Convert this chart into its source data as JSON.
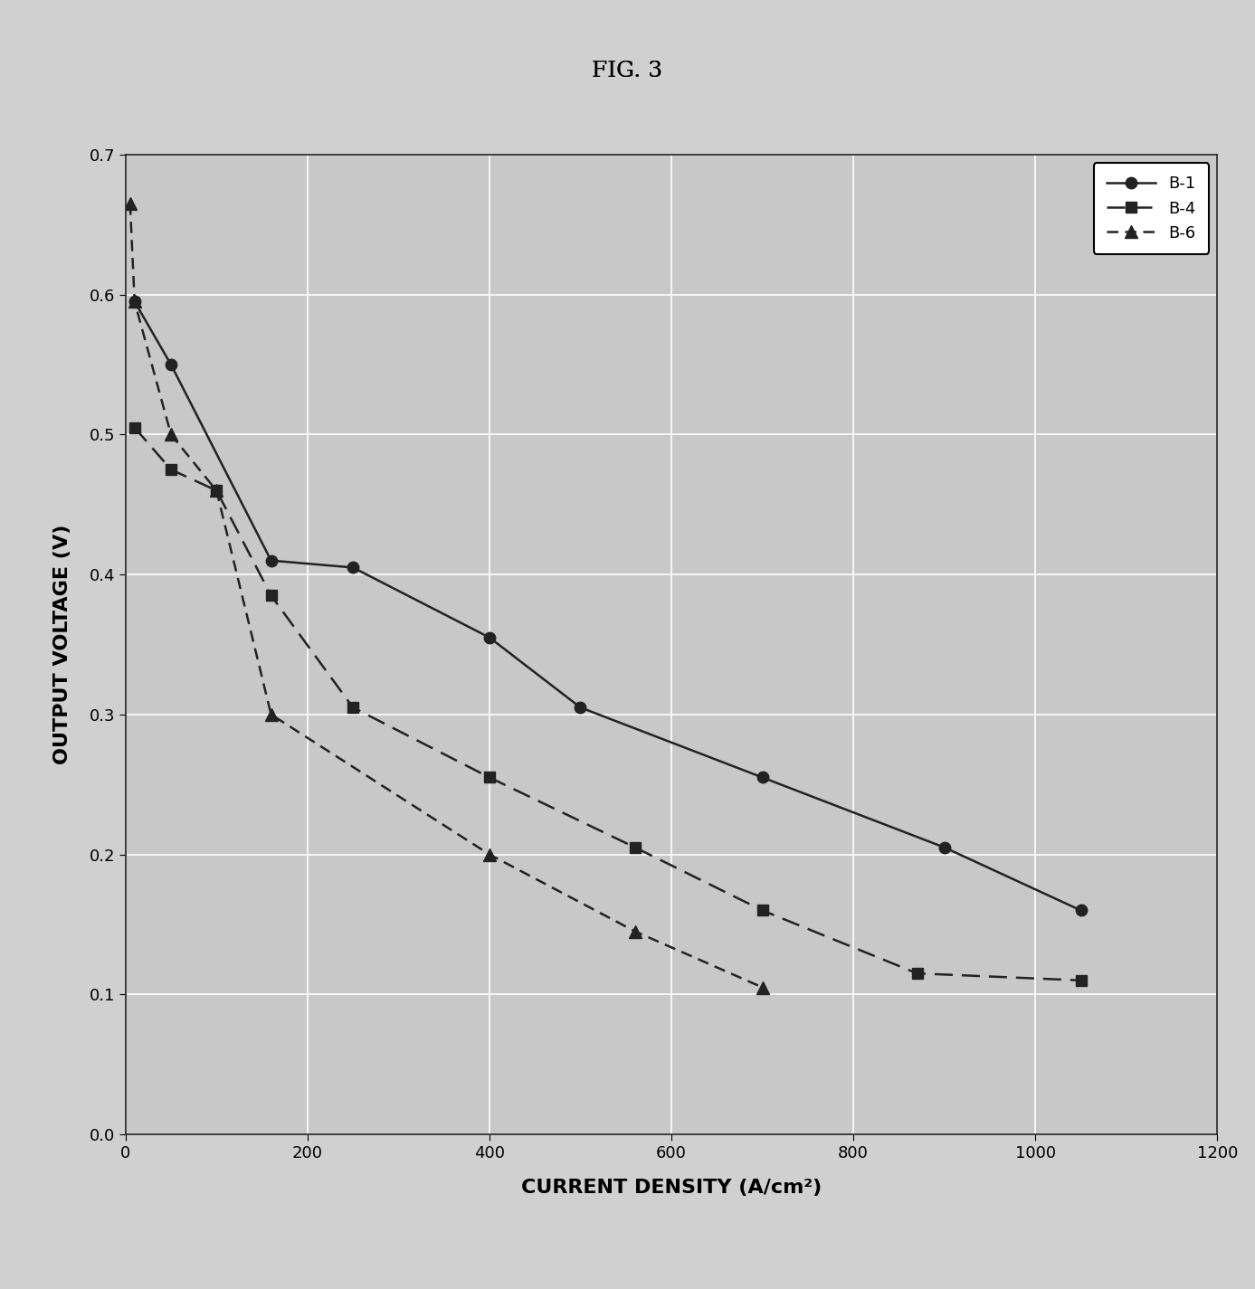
{
  "title": "FIG. 3",
  "xlabel": "CURRENT DENSITY (A/cm²)",
  "ylabel": "OUTPUT VOLTAGE (V)",
  "xlim": [
    0,
    1200
  ],
  "ylim": [
    0,
    0.7
  ],
  "xticks": [
    0,
    200,
    400,
    600,
    800,
    1000,
    1200
  ],
  "yticks": [
    0,
    0.1,
    0.2,
    0.3,
    0.4,
    0.5,
    0.6,
    0.7
  ],
  "series": [
    {
      "label": "B-1",
      "x": [
        10,
        50,
        160,
        250,
        400,
        500,
        700,
        900,
        1050
      ],
      "y": [
        0.595,
        0.55,
        0.41,
        0.405,
        0.355,
        0.305,
        0.255,
        0.205,
        0.16
      ],
      "color": "#222222",
      "linestyle": "solid",
      "marker": "o",
      "markersize": 9,
      "linewidth": 1.8,
      "dashes": null
    },
    {
      "label": "B-4",
      "x": [
        10,
        50,
        100,
        160,
        250,
        400,
        560,
        700,
        870,
        1050
      ],
      "y": [
        0.505,
        0.475,
        0.46,
        0.385,
        0.305,
        0.255,
        0.205,
        0.16,
        0.115,
        0.11
      ],
      "color": "#222222",
      "linestyle": "dashed",
      "marker": "s",
      "markersize": 9,
      "linewidth": 1.8,
      "dashes": [
        8,
        4
      ]
    },
    {
      "label": "B-6",
      "x": [
        5,
        10,
        50,
        100,
        160,
        400,
        560,
        700
      ],
      "y": [
        0.665,
        0.595,
        0.5,
        0.46,
        0.3,
        0.2,
        0.145,
        0.105
      ],
      "color": "#222222",
      "linestyle": "dashed",
      "marker": "^",
      "markersize": 10,
      "linewidth": 1.8,
      "dashes": [
        5,
        3
      ]
    }
  ],
  "plot_background": "#c8c8c8",
  "figure_background": "#d0d0d0",
  "grid_color": "#ffffff",
  "grid_linewidth": 1.2,
  "legend_loc": "upper right",
  "title_fontsize": 18,
  "label_fontsize": 16,
  "tick_fontsize": 13,
  "legend_fontsize": 13
}
